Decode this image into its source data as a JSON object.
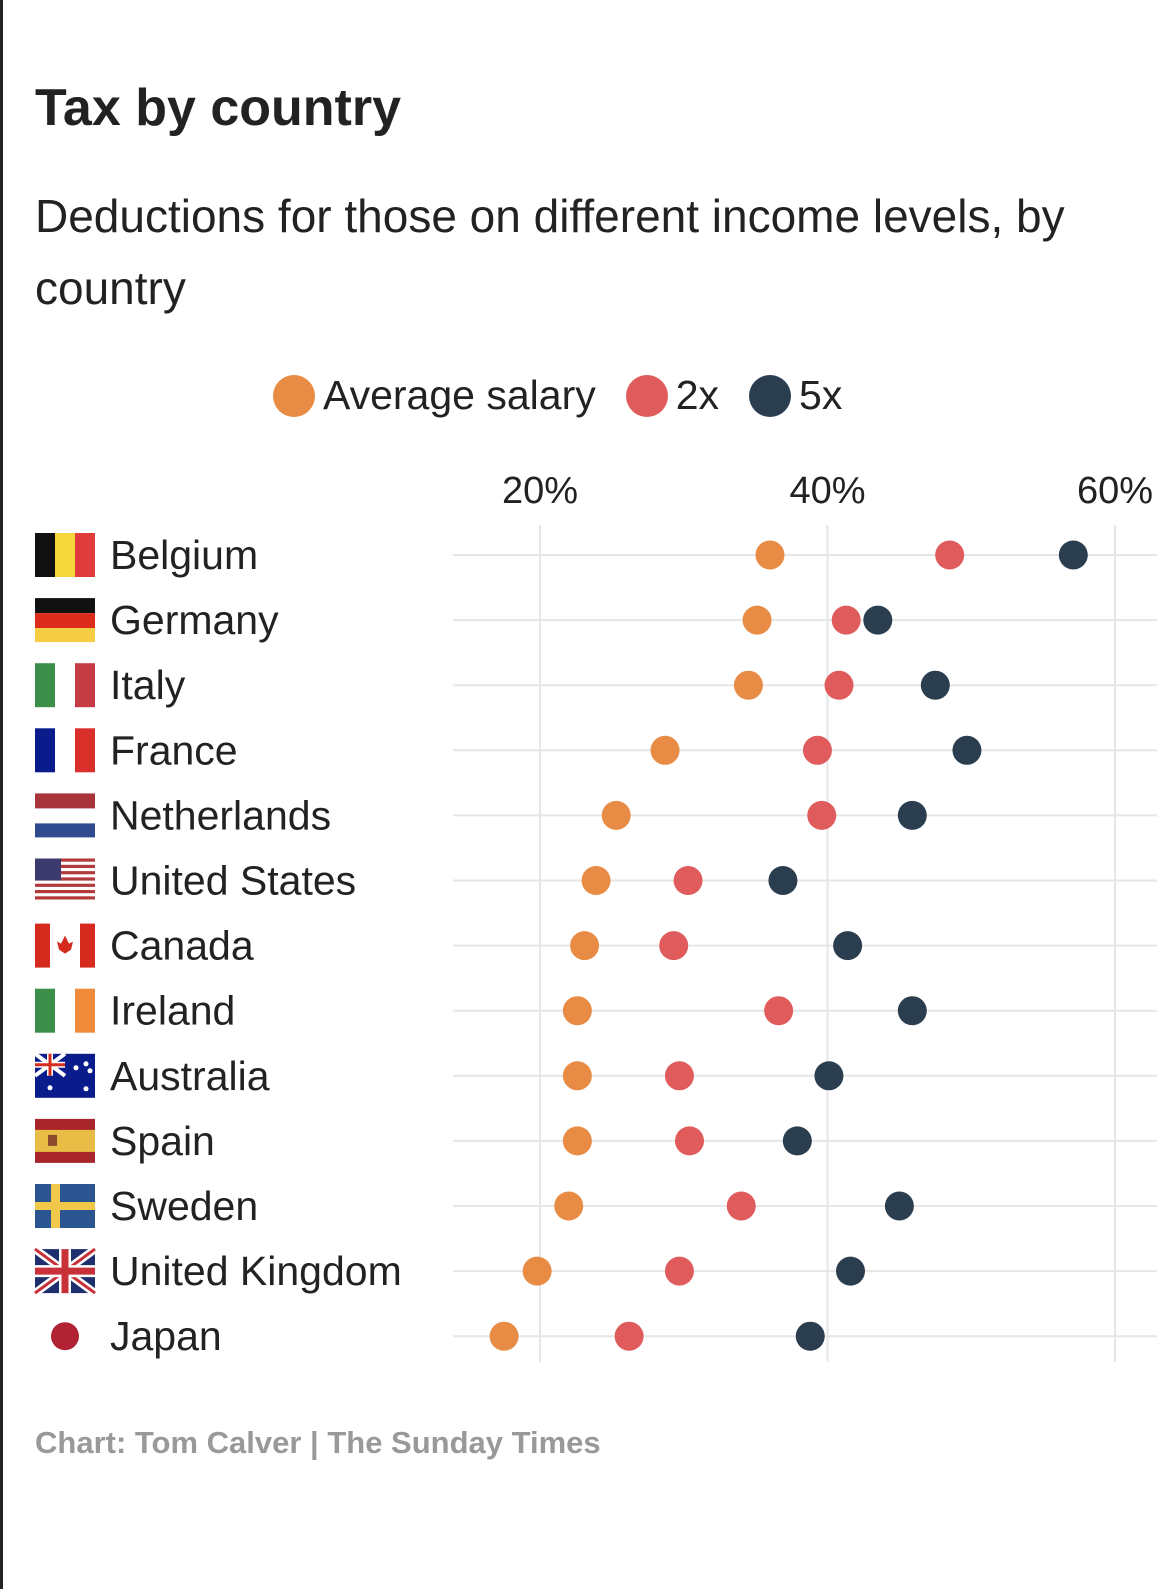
{
  "chart_data": {
    "type": "scatter",
    "title": "Tax by country",
    "subtitle": "Deductions for those on different income levels, by country",
    "xlabel": "",
    "ylabel": "",
    "xlim": [
      14,
      60
    ],
    "x_ticks": [
      20,
      40,
      60
    ],
    "x_tick_labels": [
      "20%",
      "40%",
      "60%"
    ],
    "grid": true,
    "legend_position": "top-center",
    "categories": [
      "Belgium",
      "Germany",
      "Italy",
      "France",
      "Netherlands",
      "United States",
      "Canada",
      "Ireland",
      "Australia",
      "Spain",
      "Sweden",
      "United Kingdom",
      "Japan"
    ],
    "series": [
      {
        "name": "Average salary",
        "color": "#E88B44",
        "values": [
          36.0,
          35.1,
          34.5,
          28.7,
          25.3,
          23.9,
          23.1,
          22.6,
          22.6,
          22.6,
          22.0,
          19.8,
          17.5
        ]
      },
      {
        "name": "2x",
        "color": "#E05C5C",
        "values": [
          48.5,
          41.3,
          40.8,
          39.3,
          39.6,
          30.3,
          29.3,
          36.6,
          29.7,
          30.4,
          34.0,
          29.7,
          26.2
        ]
      },
      {
        "name": "5x",
        "color": "#2B3E50",
        "values": [
          57.1,
          43.5,
          47.5,
          49.7,
          45.9,
          36.9,
          41.4,
          45.9,
          40.1,
          37.9,
          45.0,
          41.6,
          38.8
        ]
      }
    ],
    "source": "Chart: Tom Calver | The Sunday Times"
  }
}
